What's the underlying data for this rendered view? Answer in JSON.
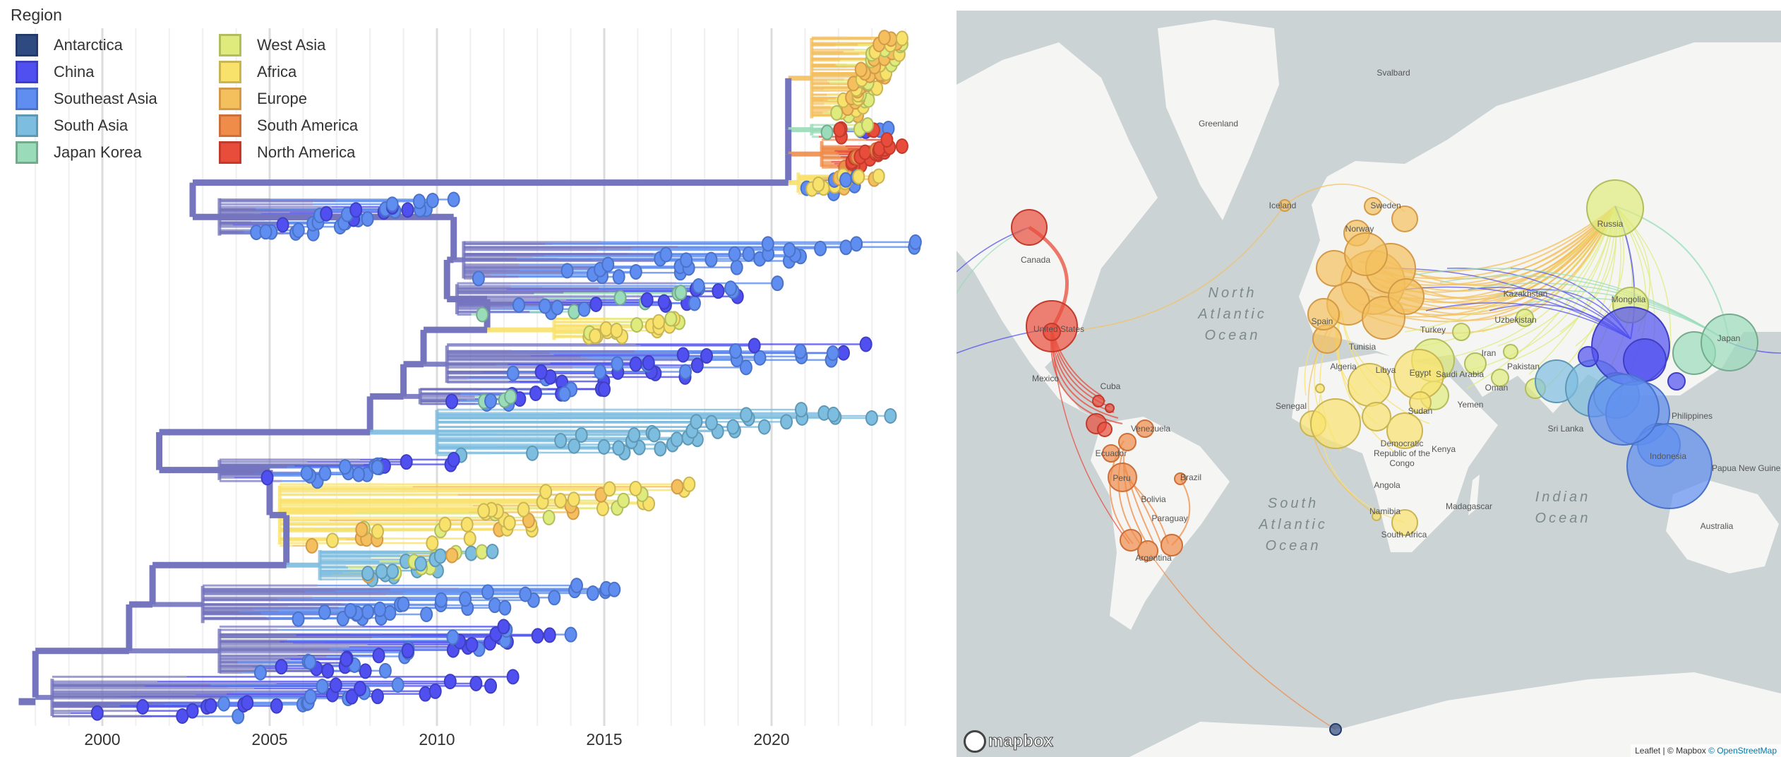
{
  "legend": {
    "title": "Region",
    "items": [
      {
        "label": "Antarctica",
        "color": "#2f4a80",
        "stroke": "#243a6a"
      },
      {
        "label": "China",
        "color": "#5050f0",
        "stroke": "#3f3fc4"
      },
      {
        "label": "Southeast Asia",
        "color": "#5f8ef0",
        "stroke": "#4a72c8"
      },
      {
        "label": "South Asia",
        "color": "#7dbde0",
        "stroke": "#5f98b4"
      },
      {
        "label": "Japan Korea",
        "color": "#9adcb9",
        "stroke": "#74ab8d"
      },
      {
        "label": "West Asia",
        "color": "#dfeb7c",
        "stroke": "#b2bd5e"
      },
      {
        "label": "Africa",
        "color": "#f9e26c",
        "stroke": "#c9b553"
      },
      {
        "label": "Europe",
        "color": "#f4c05e",
        "stroke": "#d49a47"
      },
      {
        "label": "South America",
        "color": "#ef8c4a",
        "stroke": "#cc6f38"
      },
      {
        "label": "North America",
        "color": "#e84c3a",
        "stroke": "#c23a2b"
      }
    ]
  },
  "chart_data": {
    "type": "phylogenetic-tree",
    "xlabel": "",
    "x_ticks": [
      "2000",
      "2005",
      "2010",
      "2015",
      "2020"
    ],
    "xlim": [
      1997.5,
      2024.6
    ],
    "grid": true,
    "color_by": "Region",
    "clades": [
      {
        "regions": [
          "Europe",
          "Europe",
          "Europe",
          "West Asia",
          "Africa"
        ],
        "parent": 2020.5,
        "root": 2021.2,
        "start": 2021.8,
        "end": 2023.9,
        "tips": 60
      },
      {
        "regions": [
          "Japan Korea",
          "West Asia",
          "North America",
          "Southeast Asia",
          "China"
        ],
        "parent": 2020.5,
        "root": 2021.2,
        "start": 2021.6,
        "end": 2023.5,
        "tips": 12
      },
      {
        "regions": [
          "South America",
          "North America",
          "North America"
        ],
        "parent": 2020.5,
        "root": 2021.5,
        "start": 2022.0,
        "end": 2023.9,
        "tips": 22
      },
      {
        "regions": [
          "Africa",
          "Europe",
          "Africa",
          "Southeast Asia"
        ],
        "parent": 2020.5,
        "root": 2020.8,
        "start": 2021.0,
        "end": 2023.2,
        "tips": 18
      },
      {
        "regions": [
          "China",
          "Southeast Asia",
          "Southeast Asia"
        ],
        "parent": 2002.7,
        "root": 2003.5,
        "start": 2003.8,
        "end": 2010.5,
        "tips": 30
      },
      {
        "regions": [
          "Southeast Asia"
        ],
        "parent": 2010.5,
        "root": 2010.8,
        "start": 2011.0,
        "end": 2024.3,
        "tips": 30
      },
      {
        "regions": [
          "Southeast Asia",
          "China",
          "Japan Korea"
        ],
        "parent": 2010.3,
        "root": 2010.6,
        "start": 2011.0,
        "end": 2020.5,
        "tips": 25
      },
      {
        "regions": [
          "Africa",
          "West Asia",
          "Africa"
        ],
        "parent": 2011.5,
        "root": 2013.5,
        "start": 2014.0,
        "end": 2017.5,
        "tips": 18
      },
      {
        "regions": [
          "Southeast Asia",
          "China"
        ],
        "parent": 2009.6,
        "root": 2010.3,
        "start": 2010.5,
        "end": 2023.5,
        "tips": 30
      },
      {
        "regions": [
          "China",
          "Southeast Asia",
          "Japan Korea"
        ],
        "parent": 2009.0,
        "root": 2009.5,
        "start": 2010.0,
        "end": 2015.0,
        "tips": 15
      },
      {
        "regions": [
          "South Asia"
        ],
        "parent": 2008.0,
        "root": 2010.0,
        "start": 2010.5,
        "end": 2023.8,
        "tips": 35
      },
      {
        "regions": [
          "China",
          "Southeast Asia"
        ],
        "parent": 2001.7,
        "root": 2003.5,
        "start": 2004.0,
        "end": 2010.5,
        "tips": 18
      },
      {
        "regions": [
          "Africa",
          "West Asia",
          "Europe",
          "Africa"
        ],
        "parent": 2005.0,
        "root": 2005.3,
        "start": 2005.8,
        "end": 2018.0,
        "tips": 45
      },
      {
        "regions": [
          "South Asia",
          "Europe",
          "West Asia"
        ],
        "parent": 2005.5,
        "root": 2006.5,
        "start": 2007.0,
        "end": 2011.7,
        "tips": 25
      },
      {
        "regions": [
          "Southeast Asia"
        ],
        "parent": 2001.5,
        "root": 2003.0,
        "start": 2003.5,
        "end": 2015.3,
        "tips": 30
      },
      {
        "regions": [
          "Southeast Asia",
          "China"
        ],
        "parent": 2000.8,
        "root": 2003.5,
        "start": 2004.0,
        "end": 2014.0,
        "tips": 35
      },
      {
        "regions": [
          "China",
          "Southeast Asia"
        ],
        "parent": 1998.0,
        "root": 1998.5,
        "start": 1999.0,
        "end": 2012.5,
        "tips": 30
      }
    ]
  },
  "map": {
    "labels": [
      "Svalbard",
      "Greenland",
      "Iceland",
      "Sweden",
      "Norway",
      "Russia",
      "Canada",
      "Kazakhstan",
      "Mongolia",
      "Uzbekistan",
      "Spain",
      "Turkey",
      "United States",
      "Japan",
      "Tunisia",
      "Iran",
      "Algeria",
      "Libya",
      "Egypt",
      "Saudi Arabia",
      "Pakistan",
      "Mexico",
      "Cuba",
      "Venezuela",
      "Ecuador",
      "Peru",
      "Brazil",
      "Bolivia",
      "Paraguay",
      "Argentina",
      "Senegal",
      "Sudan",
      "Yemen",
      "Oman",
      "Sri Lanka",
      "Philippines",
      "Indonesia",
      "Papua New Guinea",
      "Australia",
      "Democratic Republic of the Congo",
      "Kenya",
      "Angola",
      "Madagascar",
      "Namibia",
      "South Africa"
    ],
    "oceans": [
      "North Atlantic Ocean",
      "South Atlantic Ocean",
      "Indian Ocean"
    ],
    "logo": "mapbox",
    "attribution_prefix": "Leaflet | © Mapbox ",
    "attribution_link": "© OpenStreetMap"
  }
}
